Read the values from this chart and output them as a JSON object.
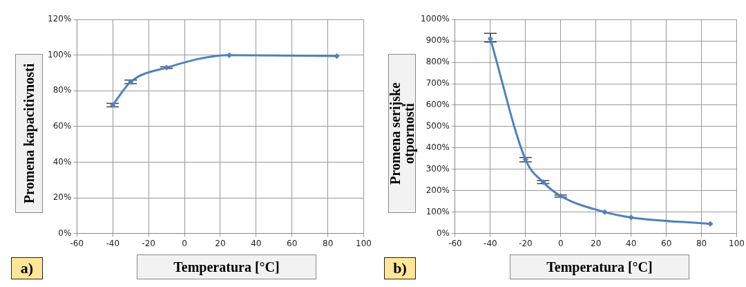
{
  "chart_data": [
    {
      "type": "line",
      "xlabel": "Temperatura [°C]",
      "ylabel": "Promena kapacitivnosti",
      "annotations": [
        "a)"
      ],
      "x": [
        -40,
        -30,
        -10,
        25,
        85
      ],
      "series": [
        {
          "color": "#4f81bd",
          "values": [
            72,
            85,
            93,
            100,
            99.5
          ],
          "errors": [
            [
              71,
              73
            ],
            [
              84,
              86
            ],
            [
              92.5,
              93.5
            ],
            null,
            null
          ]
        }
      ],
      "xlim": [
        -60,
        100
      ],
      "xticks": [
        -60,
        -40,
        -20,
        0,
        20,
        40,
        60,
        80,
        100
      ],
      "ylim": [
        0,
        120
      ],
      "yticks": [
        {
          "value": 0,
          "label": "0%"
        },
        {
          "value": 20,
          "label": "20%"
        },
        {
          "value": 40,
          "label": "40%"
        },
        {
          "value": 60,
          "label": "60%"
        },
        {
          "value": 80,
          "label": "80%"
        },
        {
          "value": 100,
          "label": "100%"
        },
        {
          "value": 120,
          "label": "120%"
        }
      ],
      "grid": true,
      "marker": "diamond",
      "line_style": "solid",
      "legend": false
    },
    {
      "type": "line",
      "xlabel": "Temperatura [°C]",
      "ylabel": "Promena serijske otpornosti",
      "annotations": [
        "b)"
      ],
      "x": [
        -40,
        -20,
        -10,
        0,
        25,
        40,
        85
      ],
      "series": [
        {
          "color": "#4f81bd",
          "values": [
            910,
            345,
            240,
            175,
            100,
            75,
            45
          ],
          "errors": [
            [
              895,
              935
            ],
            [
              335,
              355
            ],
            [
              233,
              247
            ],
            [
              170,
              180
            ],
            null,
            null,
            null
          ]
        }
      ],
      "xlim": [
        -60,
        100
      ],
      "xticks": [
        -60,
        -40,
        -20,
        0,
        20,
        40,
        60,
        80,
        100
      ],
      "ylim": [
        0,
        1000
      ],
      "yticks": [
        {
          "value": 0,
          "label": "0%"
        },
        {
          "value": 100,
          "label": "100%"
        },
        {
          "value": 200,
          "label": "200%"
        },
        {
          "value": 300,
          "label": "300%"
        },
        {
          "value": 400,
          "label": "400%"
        },
        {
          "value": 500,
          "label": "500%"
        },
        {
          "value": 600,
          "label": "600%"
        },
        {
          "value": 700,
          "label": "700%"
        },
        {
          "value": 800,
          "label": "800%"
        },
        {
          "value": 900,
          "label": "900%"
        },
        {
          "value": 1000,
          "label": "1000%"
        }
      ],
      "grid": true,
      "marker": "diamond",
      "line_style": "solid",
      "legend": false
    }
  ]
}
